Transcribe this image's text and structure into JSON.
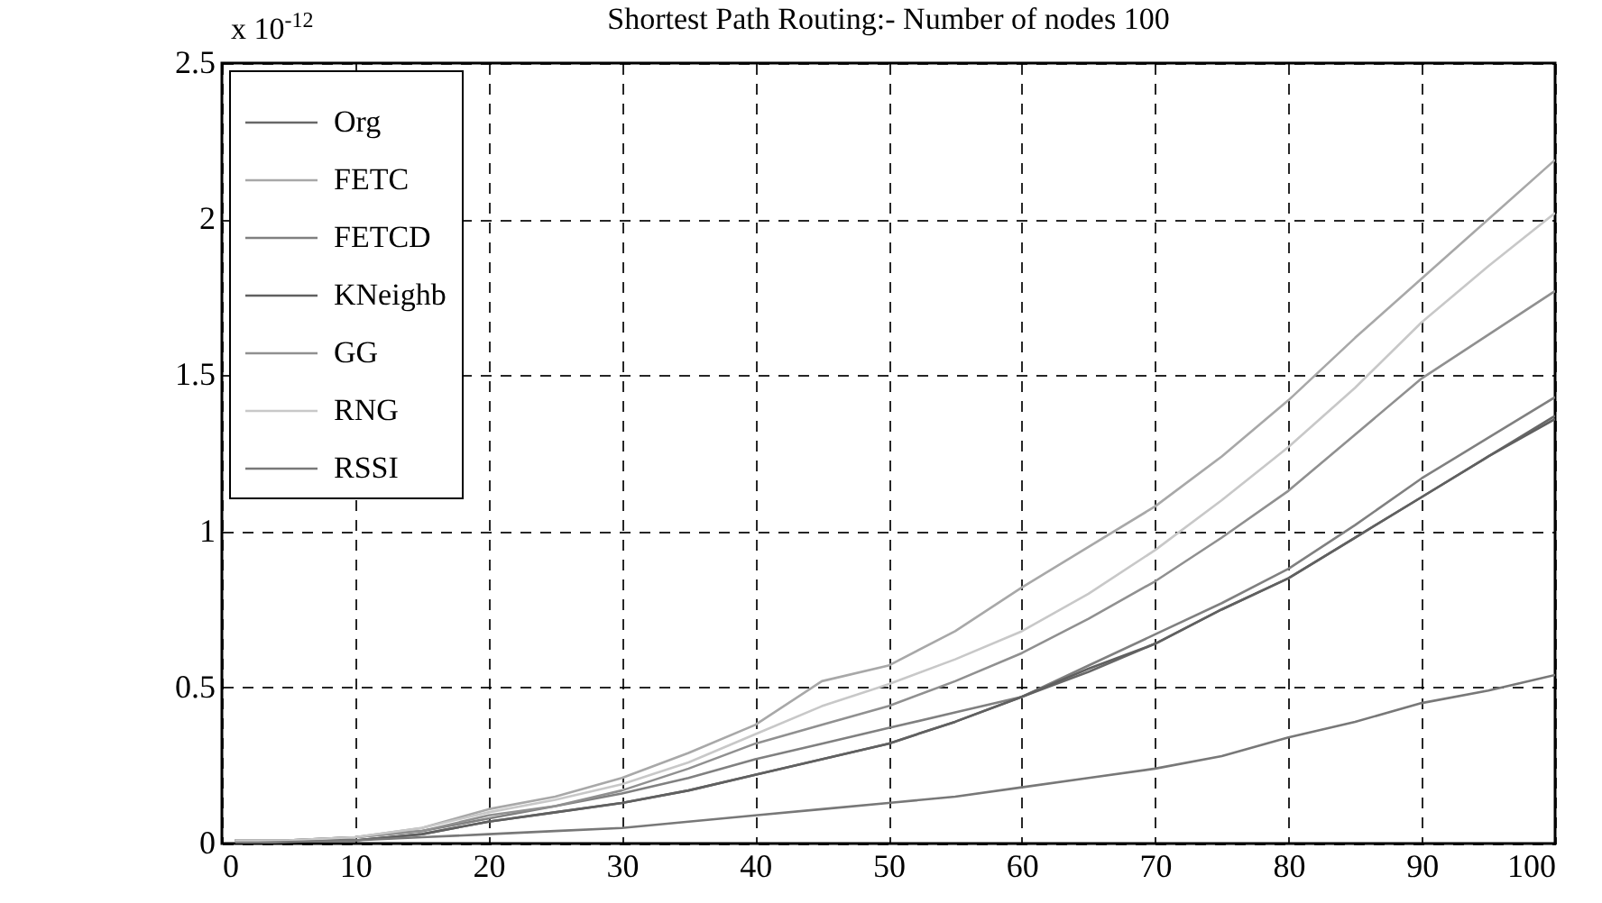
{
  "chart_data": {
    "type": "line",
    "title": "Shortest Path Routing:- Number of nodes 100",
    "x": [
      1,
      5,
      10,
      15,
      20,
      25,
      30,
      35,
      40,
      45,
      50,
      55,
      60,
      65,
      70,
      75,
      80,
      85,
      90,
      95,
      100
    ],
    "series": [
      {
        "name": "Org",
        "color": "#686868",
        "values": [
          0.01,
          0.01,
          0.01,
          0.03,
          0.07,
          0.1,
          0.13,
          0.17,
          0.22,
          0.27,
          0.32,
          0.39,
          0.47,
          0.55,
          0.64,
          0.75,
          0.85,
          0.98,
          1.11,
          1.24,
          1.37
        ]
      },
      {
        "name": "FETC",
        "color": "#a8a8a8",
        "values": [
          0.01,
          0.01,
          0.02,
          0.05,
          0.11,
          0.15,
          0.21,
          0.29,
          0.38,
          0.52,
          0.57,
          0.68,
          0.82,
          0.95,
          1.08,
          1.24,
          1.42,
          1.62,
          1.81,
          2.0,
          2.19
        ]
      },
      {
        "name": "FETCD",
        "color": "#808080",
        "values": [
          0.01,
          0.01,
          0.02,
          0.04,
          0.08,
          0.12,
          0.16,
          0.21,
          0.27,
          0.32,
          0.37,
          0.42,
          0.47,
          0.57,
          0.67,
          0.77,
          0.88,
          1.02,
          1.17,
          1.3,
          1.43
        ]
      },
      {
        "name": "KNeighb",
        "color": "#606060",
        "values": [
          0.01,
          0.01,
          0.01,
          0.03,
          0.07,
          0.1,
          0.13,
          0.17,
          0.22,
          0.27,
          0.32,
          0.39,
          0.47,
          0.56,
          0.64,
          0.75,
          0.85,
          0.98,
          1.11,
          1.24,
          1.36
        ]
      },
      {
        "name": "GG",
        "color": "#909090",
        "values": [
          0.01,
          0.01,
          0.02,
          0.04,
          0.09,
          0.12,
          0.17,
          0.24,
          0.32,
          0.38,
          0.44,
          0.52,
          0.61,
          0.72,
          0.84,
          0.98,
          1.13,
          1.31,
          1.49,
          1.63,
          1.77
        ]
      },
      {
        "name": "RNG",
        "color": "#c8c8c8",
        "values": [
          0.01,
          0.01,
          0.02,
          0.05,
          0.1,
          0.14,
          0.19,
          0.26,
          0.35,
          0.44,
          0.51,
          0.59,
          0.68,
          0.8,
          0.94,
          1.1,
          1.27,
          1.46,
          1.67,
          1.85,
          2.02
        ]
      },
      {
        "name": "RSSI",
        "color": "#787878",
        "values": [
          0.0,
          0.005,
          0.01,
          0.02,
          0.03,
          0.04,
          0.05,
          0.07,
          0.09,
          0.11,
          0.13,
          0.15,
          0.18,
          0.21,
          0.24,
          0.28,
          0.34,
          0.39,
          0.45,
          0.49,
          0.54
        ]
      }
    ],
    "xlim": [
      0,
      100
    ],
    "xticks": [
      0,
      10,
      20,
      30,
      40,
      50,
      60,
      70,
      80,
      90,
      100
    ],
    "ylim": [
      0,
      2.5
    ],
    "yticks": [
      0,
      0.5,
      1,
      1.5,
      2,
      2.5
    ],
    "annotations": [
      "x 10$^{-12}$"
    ],
    "grid": true,
    "legend": "top left"
  }
}
